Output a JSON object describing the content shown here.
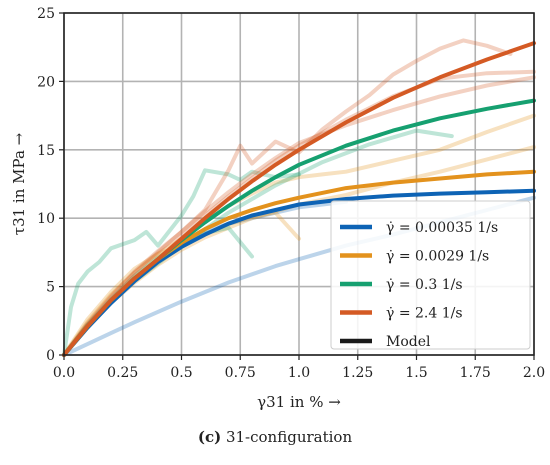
{
  "caption": {
    "letter": "(c)",
    "text": " 31-configuration"
  },
  "chart_data": {
    "type": "line",
    "xlabel": "γ31 in % →",
    "ylabel": "τ31 in MPa →",
    "xlim": [
      0,
      2.0
    ],
    "ylim": [
      0,
      25
    ],
    "xticks": [
      "0.0",
      "0.25",
      "0.5",
      "0.75",
      "1.0",
      "1.25",
      "1.5",
      "1.75",
      "2.0"
    ],
    "yticks": [
      "0",
      "5",
      "10",
      "15",
      "20",
      "25"
    ],
    "grid": true,
    "legend_position": "lower-right",
    "series": [
      {
        "name": "γ̇ = 0.00035 1/s",
        "color": "#0d63b5",
        "model": {
          "x": [
            0,
            0.1,
            0.2,
            0.3,
            0.4,
            0.5,
            0.6,
            0.7,
            0.8,
            0.9,
            1.0,
            1.2,
            1.4,
            1.6,
            1.8,
            2.0
          ],
          "y": [
            0,
            2.0,
            3.8,
            5.4,
            6.8,
            7.9,
            8.8,
            9.6,
            10.2,
            10.6,
            11.0,
            11.4,
            11.65,
            11.8,
            11.9,
            12.0
          ]
        },
        "experiments": [
          {
            "x": [
              0,
              0.1,
              0.2,
              0.3,
              0.5,
              0.7,
              0.9,
              1.0,
              1.2,
              1.4,
              1.6,
              1.8,
              2.0
            ],
            "y": [
              0,
              0.8,
              1.6,
              2.4,
              3.9,
              5.3,
              6.5,
              7.0,
              8.0,
              8.8,
              9.7,
              10.6,
              11.5
            ]
          },
          {
            "x": [
              0,
              0.1,
              0.2,
              0.3,
              0.4,
              0.5,
              0.6,
              0.7,
              0.8,
              0.9,
              1.0,
              1.2
            ],
            "y": [
              0,
              2.2,
              4.0,
              5.6,
              7.0,
              8.3,
              9.0,
              9.6,
              10.0,
              10.4,
              10.8,
              11.2
            ]
          }
        ]
      },
      {
        "name": "γ̇ = 0.0029 1/s",
        "color": "#e3921d",
        "model": {
          "x": [
            0,
            0.1,
            0.2,
            0.3,
            0.4,
            0.5,
            0.6,
            0.7,
            0.8,
            0.9,
            1.0,
            1.2,
            1.4,
            1.6,
            1.8,
            2.0
          ],
          "y": [
            0,
            2.1,
            4.0,
            5.6,
            7.0,
            8.2,
            9.2,
            10.0,
            10.6,
            11.1,
            11.5,
            12.2,
            12.6,
            12.9,
            13.2,
            13.4
          ]
        },
        "experiments": [
          {
            "x": [
              0,
              0.1,
              0.2,
              0.3,
              0.4,
              0.5,
              0.6,
              0.7,
              0.8,
              0.9,
              1.0,
              1.1,
              1.2,
              1.4,
              1.6,
              1.8,
              2.0
            ],
            "y": [
              0,
              2.4,
              4.4,
              6.0,
              7.4,
              8.5,
              9.8,
              10.9,
              11.8,
              12.6,
              13.0,
              13.2,
              13.4,
              14.2,
              15.0,
              16.3,
              17.5
            ]
          },
          {
            "x": [
              0,
              0.1,
              0.2,
              0.3,
              0.4,
              0.5,
              0.6,
              0.7,
              0.8,
              0.9,
              1.0
            ],
            "y": [
              0,
              2.6,
              4.6,
              6.3,
              7.4,
              8.0,
              8.8,
              9.6,
              10.1,
              10.4,
              8.5
            ]
          },
          {
            "x": [
              0,
              0.1,
              0.2,
              0.3,
              0.4,
              0.5,
              0.6,
              0.8,
              1.0,
              1.2,
              1.4,
              1.6,
              1.8,
              2.0
            ],
            "y": [
              0,
              2.0,
              3.8,
              5.3,
              6.6,
              7.7,
              8.6,
              10.0,
              11.0,
              11.7,
              12.6,
              13.4,
              14.3,
              15.2
            ]
          }
        ]
      },
      {
        "name": "γ̇ = 0.3 1/s",
        "color": "#16a070",
        "model": {
          "x": [
            0,
            0.1,
            0.2,
            0.3,
            0.4,
            0.5,
            0.6,
            0.7,
            0.8,
            0.9,
            1.0,
            1.2,
            1.4,
            1.6,
            1.8,
            2.0
          ],
          "y": [
            0,
            2.1,
            4.0,
            5.6,
            7.0,
            8.4,
            9.7,
            10.9,
            12.0,
            13.0,
            13.9,
            15.3,
            16.4,
            17.3,
            18.0,
            18.6
          ]
        },
        "experiments": [
          {
            "x": [
              0,
              0.03,
              0.06,
              0.1,
              0.15,
              0.2,
              0.3,
              0.35,
              0.4,
              0.5,
              0.55,
              0.6,
              0.7,
              0.75,
              0.8,
              0.9,
              1.0
            ],
            "y": [
              0,
              3.5,
              5.2,
              6.1,
              6.8,
              7.8,
              8.4,
              9.0,
              8.0,
              10.2,
              11.6,
              13.5,
              13.2,
              12.8,
              13.4,
              13.0,
              13.2
            ]
          },
          {
            "x": [
              0,
              0.1,
              0.2,
              0.3,
              0.4,
              0.5,
              0.6,
              0.7,
              0.8
            ],
            "y": [
              0,
              2.2,
              4.1,
              5.8,
              7.1,
              8.2,
              8.9,
              9.3,
              7.2
            ]
          },
          {
            "x": [
              0,
              0.1,
              0.2,
              0.3,
              0.5,
              0.7,
              0.9,
              1.1,
              1.3,
              1.5,
              1.65
            ],
            "y": [
              0,
              2.0,
              3.9,
              5.4,
              8.0,
              10.4,
              12.4,
              14.1,
              15.4,
              16.4,
              16.0
            ]
          }
        ]
      },
      {
        "name": "γ̇ = 2.4 1/s",
        "color": "#d45a24",
        "model": {
          "x": [
            0,
            0.1,
            0.2,
            0.3,
            0.4,
            0.5,
            0.6,
            0.7,
            0.8,
            0.9,
            1.0,
            1.2,
            1.4,
            1.6,
            1.8,
            2.0
          ],
          "y": [
            0,
            2.1,
            4.0,
            5.6,
            7.0,
            8.5,
            10.0,
            11.4,
            12.7,
            13.9,
            15.0,
            17.0,
            18.8,
            20.3,
            21.6,
            22.8
          ]
        },
        "experiments": [
          {
            "x": [
              0,
              0.1,
              0.2,
              0.3,
              0.4,
              0.5,
              0.6,
              0.7,
              0.75,
              0.8,
              0.9,
              1.0,
              1.1,
              1.2,
              1.3,
              1.4,
              1.5,
              1.6,
              1.7,
              1.8,
              1.9
            ],
            "y": [
              0,
              2.3,
              4.3,
              6.1,
              7.6,
              9.0,
              10.6,
              13.5,
              15.3,
              14.0,
              15.6,
              14.8,
              16.5,
              17.8,
              19.0,
              20.5,
              21.5,
              22.4,
              23.0,
              22.6,
              22.0
            ]
          },
          {
            "x": [
              0,
              0.1,
              0.2,
              0.3,
              0.4,
              0.5,
              0.6,
              0.7,
              0.8,
              0.9,
              1.0,
              1.2,
              1.4,
              1.6,
              1.8,
              2.0
            ],
            "y": [
              0,
              2.0,
              3.8,
              5.5,
              7.0,
              8.6,
              10.2,
              11.6,
              12.9,
              14.2,
              15.3,
              17.2,
              18.9,
              20.2,
              20.6,
              20.7
            ]
          },
          {
            "x": [
              0,
              0.1,
              0.2,
              0.3,
              0.4,
              0.5,
              0.6,
              0.7,
              0.8,
              0.9,
              1.0,
              1.2,
              1.4,
              1.6,
              1.8,
              2.0
            ],
            "y": [
              0,
              2.2,
              4.2,
              6.0,
              7.5,
              9.0,
              10.5,
              11.9,
              13.2,
              14.4,
              15.5,
              16.8,
              17.9,
              18.9,
              19.7,
              20.3
            ]
          }
        ]
      }
    ],
    "model_legend": {
      "name": "Model",
      "color": "#1a1a1a"
    }
  }
}
